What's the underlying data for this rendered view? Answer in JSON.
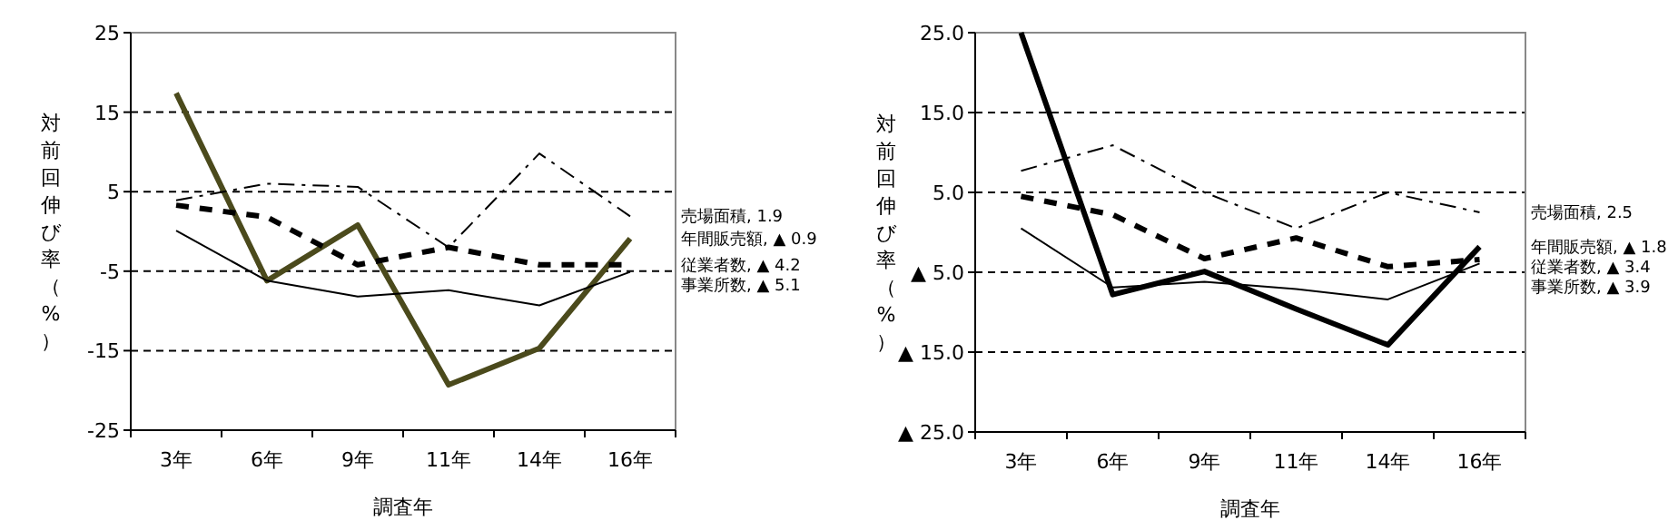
{
  "chart_data": [
    {
      "type": "line",
      "xlabel": "調査年",
      "ylabel": "対前回伸び率（%）",
      "categories": [
        "3年",
        "6年",
        "9年",
        "11年",
        "14年",
        "16年"
      ],
      "ylim": [
        -25,
        25
      ],
      "yticks": [
        25,
        15,
        5,
        -5,
        -15,
        -25
      ],
      "grid": "y",
      "series": [
        {
          "name": "年間販売額",
          "color": "#4b4a1c",
          "line_style": "solid",
          "values": [
            17.4,
            -6.2,
            0.8,
            -19.3,
            -14.7,
            -0.9
          ]
        },
        {
          "name": "売場面積",
          "color": "#000000",
          "line_style": "dashdot",
          "values": [
            3.9,
            6.0,
            5.6,
            -2.0,
            9.8,
            1.9
          ]
        },
        {
          "name": "従業者数",
          "color": "#000000",
          "line_style": "dashed",
          "values": [
            3.3,
            1.8,
            -4.2,
            -2.0,
            -4.2,
            -4.2
          ]
        },
        {
          "name": "事業所数",
          "color": "#000000",
          "line_style": "solid",
          "values": [
            0.1,
            -6.2,
            -8.2,
            -7.4,
            -9.3,
            -5.1
          ]
        }
      ],
      "annotations": [
        ", ▲ 0.9",
        ", 1.9",
        ", ▲ 4.2",
        ", ▲ 5.1"
      ]
    },
    {
      "type": "line",
      "xlabel": "調査年",
      "ylabel": "対前回伸び率（%）",
      "categories": [
        "3年",
        "6年",
        "9年",
        "11年",
        "14年",
        "16年"
      ],
      "ylim": [
        -25,
        25
      ],
      "yticks": [
        {
          "value": 25,
          "label": "25.0"
        },
        {
          "value": 15,
          "label": "15.0"
        },
        {
          "value": 5,
          "label": "5.0"
        },
        {
          "value": -5,
          "label": "▲ 5.0"
        },
        {
          "value": -15,
          "label": "▲ 15.0"
        },
        {
          "value": -25,
          "label": "▲ 25.0"
        }
      ],
      "grid": "y",
      "series": [
        {
          "name": "年間販売額",
          "color": "#000000",
          "line_style": "solid",
          "values": [
            25.0,
            -7.8,
            -4.9,
            -9.6,
            -14.1,
            -1.8
          ]
        },
        {
          "name": "売場面積",
          "color": "#000000",
          "line_style": "dashdot",
          "values": [
            7.7,
            10.9,
            5.0,
            0.5,
            5.0,
            2.5
          ]
        },
        {
          "name": "従業者数",
          "color": "#000000",
          "line_style": "dashed",
          "values": [
            4.5,
            2.2,
            -3.3,
            -0.7,
            -4.3,
            -3.4
          ]
        },
        {
          "name": "事業所数",
          "color": "#000000",
          "line_style": "solid",
          "values": [
            0.5,
            -6.9,
            -6.2,
            -7.1,
            -8.4,
            -3.9
          ]
        }
      ],
      "annotations": [
        ", ▲ 1.8",
        ", 2.5",
        ", ▲ 3.4",
        ", ▲ 3.9"
      ]
    }
  ]
}
